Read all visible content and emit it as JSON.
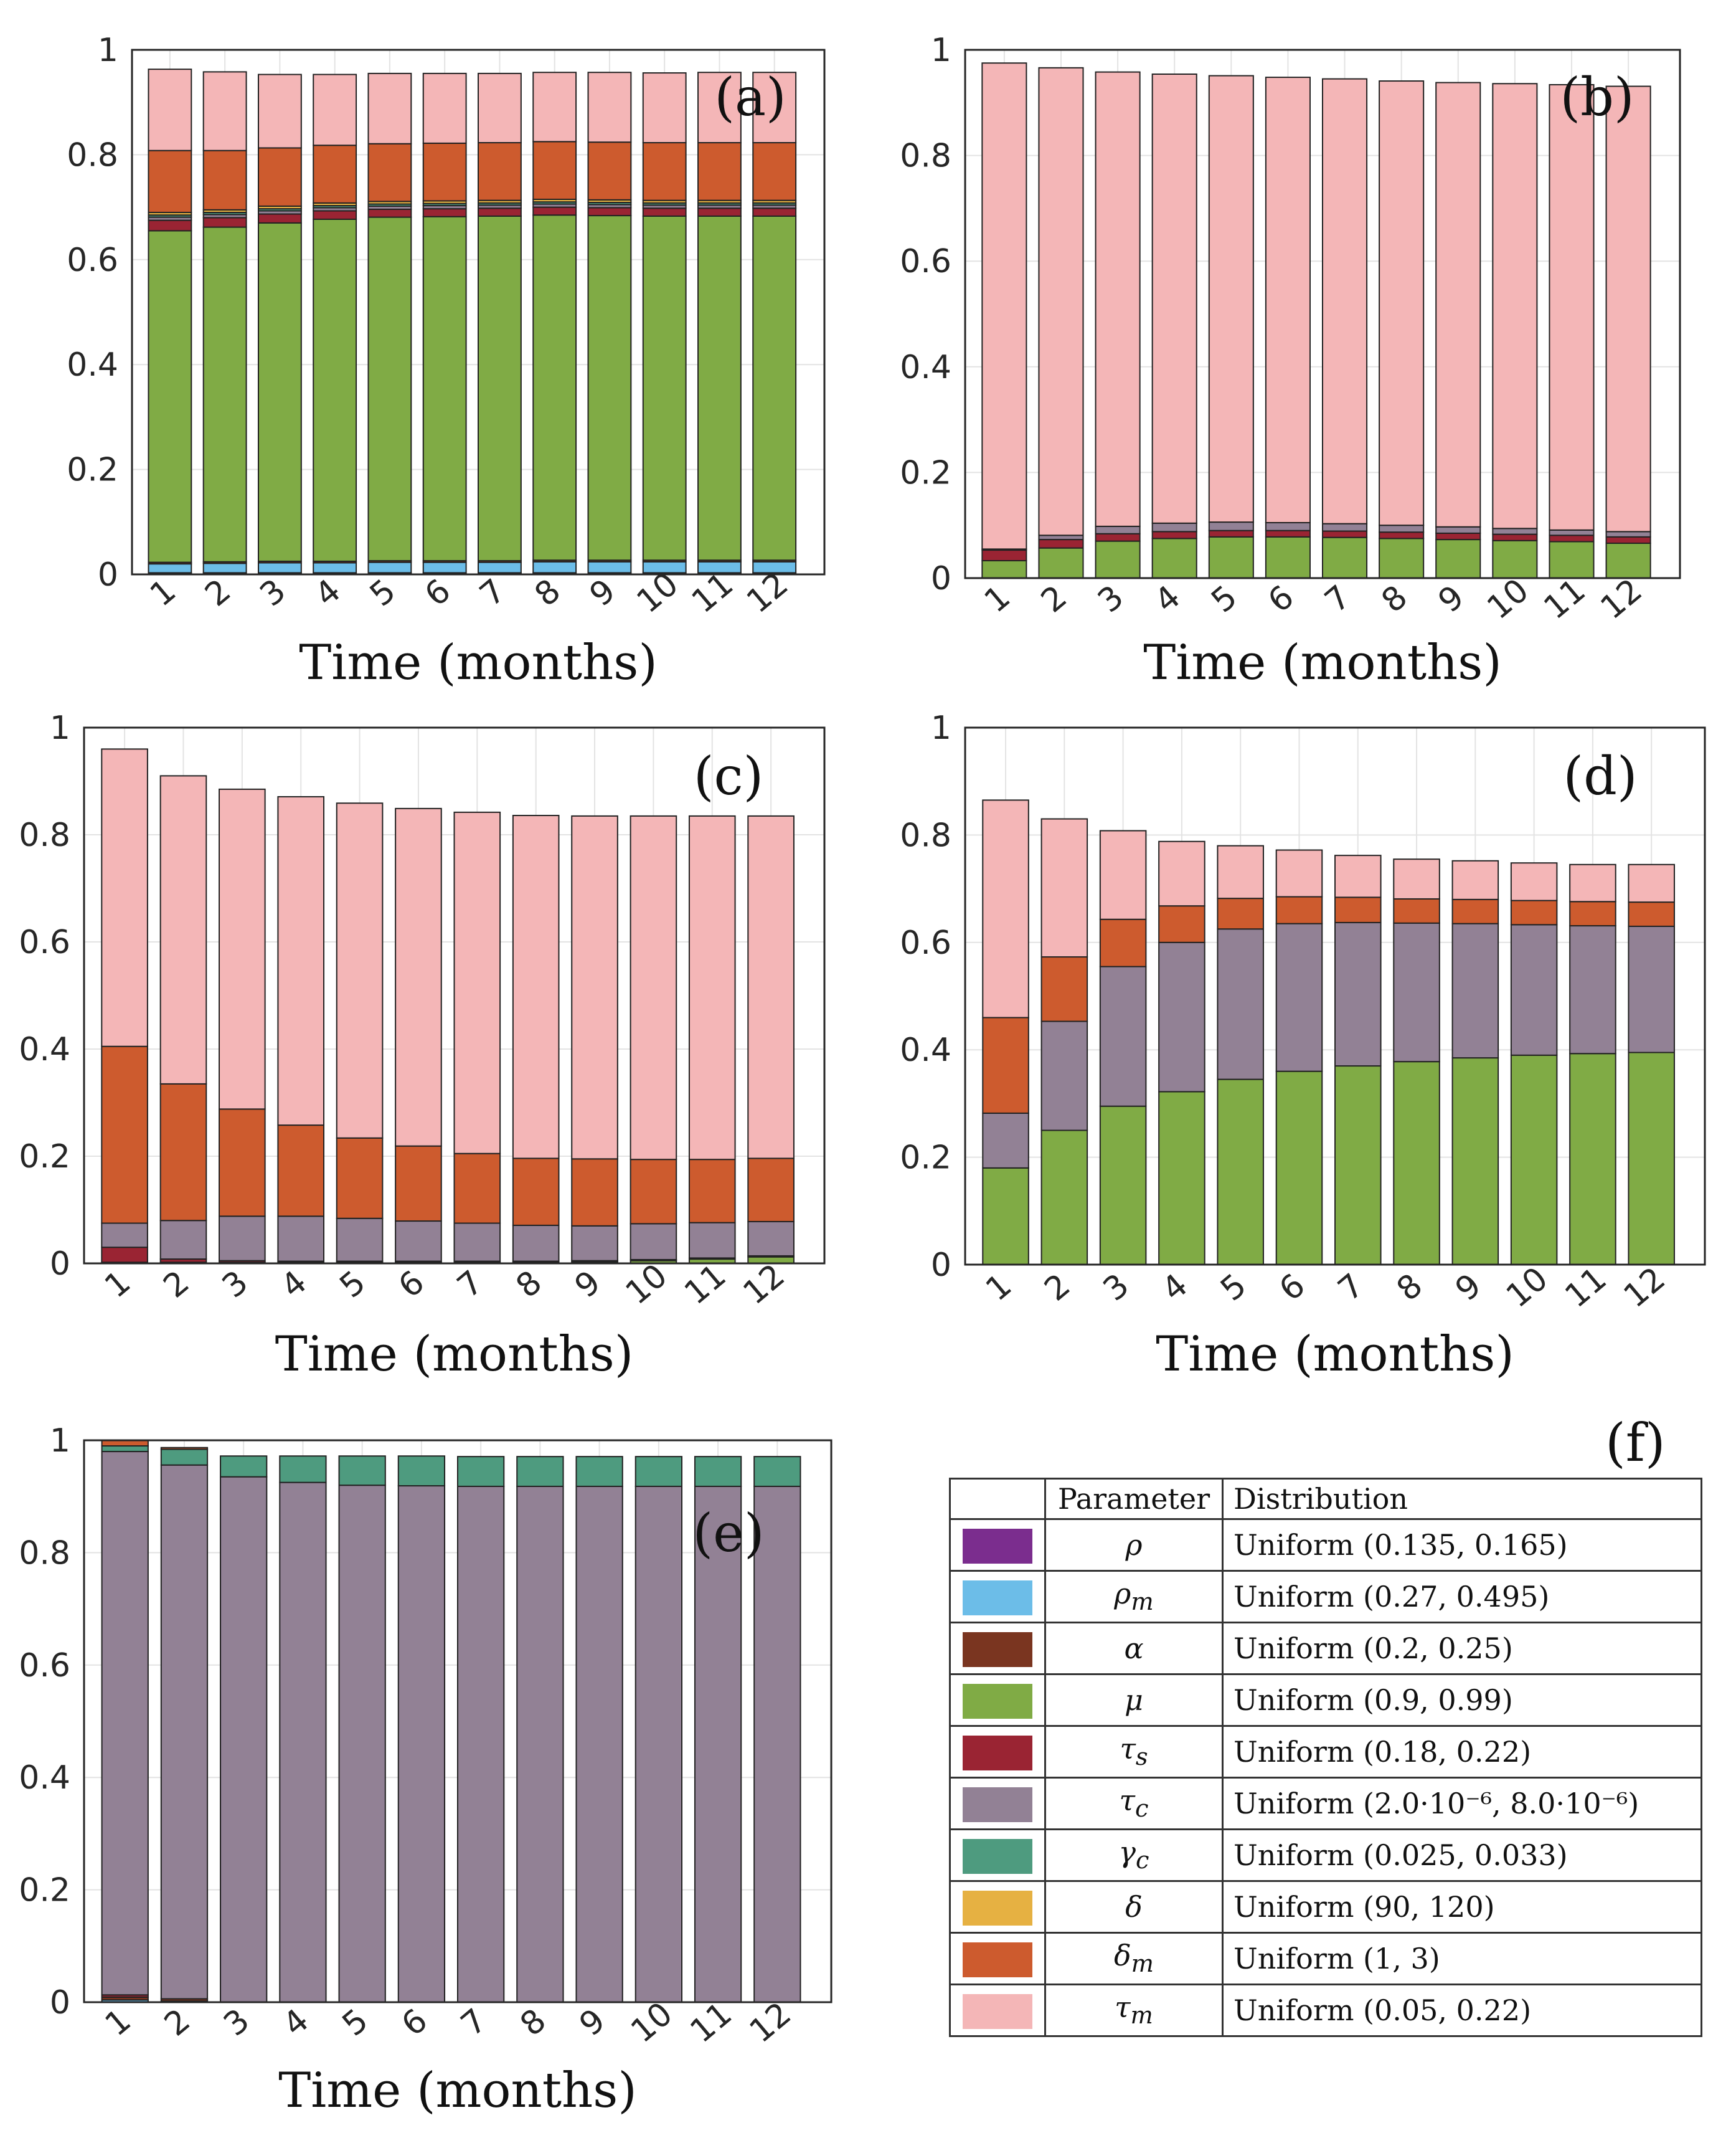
{
  "chart_data": [
    {
      "type": "bar",
      "stacked": true,
      "panel": "(a)",
      "xlabel": "Time (months)",
      "categories": [
        "1",
        "2",
        "3",
        "4",
        "5",
        "6",
        "7",
        "8",
        "9",
        "10",
        "11",
        "12"
      ],
      "ylim": [
        0,
        1
      ],
      "yticks": [
        "0",
        "0.2",
        "0.4",
        "0.6",
        "0.8",
        "1"
      ],
      "series": [
        {
          "name": "rho",
          "values": [
            0.003,
            0.003,
            0.003,
            0.003,
            0.003,
            0.003,
            0.003,
            0.003,
            0.003,
            0.003,
            0.003,
            0.003
          ]
        },
        {
          "name": "rho_m",
          "values": [
            0.017,
            0.018,
            0.019,
            0.019,
            0.02,
            0.02,
            0.02,
            0.021,
            0.021,
            0.021,
            0.021,
            0.021
          ]
        },
        {
          "name": "alpha",
          "values": [
            0.003,
            0.003,
            0.003,
            0.003,
            0.003,
            0.003,
            0.003,
            0.003,
            0.003,
            0.003,
            0.003,
            0.003
          ]
        },
        {
          "name": "mu",
          "values": [
            0.632,
            0.638,
            0.645,
            0.652,
            0.655,
            0.656,
            0.657,
            0.658,
            0.657,
            0.656,
            0.656,
            0.656
          ]
        },
        {
          "name": "tau_s",
          "values": [
            0.02,
            0.018,
            0.017,
            0.016,
            0.015,
            0.015,
            0.015,
            0.015,
            0.015,
            0.015,
            0.015,
            0.015
          ]
        },
        {
          "name": "tau_c",
          "values": [
            0.006,
            0.006,
            0.006,
            0.006,
            0.006,
            0.006,
            0.006,
            0.006,
            0.006,
            0.006,
            0.006,
            0.006
          ]
        },
        {
          "name": "gamma_c",
          "values": [
            0.004,
            0.004,
            0.004,
            0.004,
            0.004,
            0.004,
            0.004,
            0.004,
            0.004,
            0.004,
            0.004,
            0.004
          ]
        },
        {
          "name": "delta",
          "values": [
            0.005,
            0.005,
            0.005,
            0.005,
            0.005,
            0.005,
            0.005,
            0.005,
            0.005,
            0.005,
            0.005,
            0.005
          ]
        },
        {
          "name": "delta_m",
          "values": [
            0.118,
            0.113,
            0.111,
            0.11,
            0.11,
            0.11,
            0.11,
            0.11,
            0.11,
            0.11,
            0.11,
            0.11
          ]
        },
        {
          "name": "tau_m",
          "values": [
            0.155,
            0.15,
            0.14,
            0.135,
            0.134,
            0.133,
            0.132,
            0.132,
            0.133,
            0.133,
            0.134,
            0.134
          ]
        }
      ]
    },
    {
      "type": "bar",
      "stacked": true,
      "panel": "(b)",
      "xlabel": "Time (months)",
      "categories": [
        "1",
        "2",
        "3",
        "4",
        "5",
        "6",
        "7",
        "8",
        "9",
        "10",
        "11",
        "12"
      ],
      "ylim": [
        0,
        1
      ],
      "yticks": [
        "0",
        "0.2",
        "0.4",
        "0.6",
        "0.8",
        "1"
      ],
      "series": [
        {
          "name": "mu",
          "values": [
            0.033,
            0.057,
            0.07,
            0.075,
            0.078,
            0.078,
            0.077,
            0.075,
            0.073,
            0.071,
            0.069,
            0.066
          ]
        },
        {
          "name": "tau_s",
          "values": [
            0.02,
            0.016,
            0.014,
            0.013,
            0.012,
            0.012,
            0.012,
            0.012,
            0.012,
            0.012,
            0.012,
            0.012
          ]
        },
        {
          "name": "tau_c",
          "values": [
            0.002,
            0.008,
            0.014,
            0.016,
            0.016,
            0.015,
            0.014,
            0.013,
            0.012,
            0.011,
            0.01,
            0.01
          ]
        },
        {
          "name": "tau_m",
          "values": [
            0.92,
            0.885,
            0.86,
            0.85,
            0.845,
            0.843,
            0.842,
            0.841,
            0.841,
            0.842,
            0.843,
            0.843
          ]
        }
      ]
    },
    {
      "type": "bar",
      "stacked": true,
      "panel": "(c)",
      "xlabel": "Time (months)",
      "categories": [
        "1",
        "2",
        "3",
        "4",
        "5",
        "6",
        "7",
        "8",
        "9",
        "10",
        "11",
        "12"
      ],
      "ylim": [
        0,
        1
      ],
      "yticks": [
        "0",
        "0.2",
        "0.4",
        "0.6",
        "0.8",
        "1"
      ],
      "series": [
        {
          "name": "mu",
          "values": [
            0.002,
            0.002,
            0.002,
            0.002,
            0.002,
            0.002,
            0.002,
            0.002,
            0.003,
            0.005,
            0.008,
            0.012
          ]
        },
        {
          "name": "tau_s",
          "values": [
            0.028,
            0.006,
            0.003,
            0.002,
            0.002,
            0.002,
            0.002,
            0.002,
            0.002,
            0.002,
            0.002,
            0.002
          ]
        },
        {
          "name": "tau_c",
          "values": [
            0.045,
            0.072,
            0.083,
            0.084,
            0.08,
            0.075,
            0.071,
            0.067,
            0.065,
            0.067,
            0.066,
            0.064
          ]
        },
        {
          "name": "delta_m",
          "values": [
            0.33,
            0.255,
            0.2,
            0.17,
            0.15,
            0.14,
            0.13,
            0.125,
            0.125,
            0.12,
            0.118,
            0.118
          ]
        },
        {
          "name": "tau_m",
          "values": [
            0.555,
            0.575,
            0.597,
            0.613,
            0.625,
            0.63,
            0.637,
            0.64,
            0.64,
            0.641,
            0.641,
            0.639
          ]
        }
      ]
    },
    {
      "type": "bar",
      "stacked": true,
      "panel": "(d)",
      "xlabel": "Time (months)",
      "categories": [
        "1",
        "2",
        "3",
        "4",
        "5",
        "6",
        "7",
        "8",
        "9",
        "10",
        "11",
        "12"
      ],
      "ylim": [
        0,
        1
      ],
      "yticks": [
        "0",
        "0.2",
        "0.4",
        "0.6",
        "0.8",
        "1"
      ],
      "series": [
        {
          "name": "mu",
          "values": [
            0.18,
            0.25,
            0.295,
            0.322,
            0.345,
            0.36,
            0.37,
            0.378,
            0.385,
            0.39,
            0.393,
            0.395
          ]
        },
        {
          "name": "tau_c",
          "values": [
            0.102,
            0.203,
            0.26,
            0.278,
            0.28,
            0.275,
            0.267,
            0.258,
            0.25,
            0.243,
            0.238,
            0.235
          ]
        },
        {
          "name": "delta_m",
          "values": [
            0.178,
            0.12,
            0.088,
            0.068,
            0.057,
            0.05,
            0.047,
            0.045,
            0.045,
            0.045,
            0.045,
            0.045
          ]
        },
        {
          "name": "tau_m",
          "values": [
            0.405,
            0.257,
            0.165,
            0.12,
            0.098,
            0.087,
            0.078,
            0.074,
            0.072,
            0.07,
            0.069,
            0.07
          ]
        }
      ]
    },
    {
      "type": "bar",
      "stacked": true,
      "panel": "(e)",
      "xlabel": "Time (months)",
      "categories": [
        "1",
        "2",
        "3",
        "4",
        "5",
        "6",
        "7",
        "8",
        "9",
        "10",
        "11",
        "12"
      ],
      "ylim": [
        0,
        1
      ],
      "yticks": [
        "0",
        "0.2",
        "0.4",
        "0.6",
        "0.8",
        "1"
      ],
      "series": [
        {
          "name": "rho_m",
          "values": [
            0.004,
            0.002,
            0,
            0,
            0,
            0,
            0,
            0,
            0,
            0,
            0,
            0
          ]
        },
        {
          "name": "alpha",
          "values": [
            0.005,
            0.004,
            0,
            0,
            0,
            0,
            0,
            0,
            0,
            0,
            0,
            0
          ]
        },
        {
          "name": "tau_s",
          "values": [
            0.004,
            0,
            0,
            0,
            0,
            0,
            0,
            0,
            0,
            0,
            0,
            0
          ]
        },
        {
          "name": "tau_c",
          "values": [
            0.967,
            0.95,
            0.935,
            0.925,
            0.92,
            0.919,
            0.918,
            0.918,
            0.918,
            0.918,
            0.918,
            0.918
          ]
        },
        {
          "name": "gamma_c",
          "values": [
            0.01,
            0.028,
            0.037,
            0.047,
            0.052,
            0.053,
            0.053,
            0.053,
            0.053,
            0.053,
            0.053,
            0.053
          ]
        },
        {
          "name": "delta_m",
          "values": [
            0.01,
            0.003,
            0,
            0,
            0,
            0,
            0,
            0,
            0,
            0,
            0,
            0
          ]
        }
      ]
    }
  ],
  "colors": {
    "rho": "#7b2d8e",
    "rho_m": "#6cbde8",
    "alpha": "#7a3520",
    "mu": "#80ab45",
    "tau_s": "#9a2433",
    "tau_c": "#928195",
    "gamma_c": "#4e9b7f",
    "delta": "#e6b142",
    "delta_m": "#cd5b2e",
    "tau_m": "#f4b6b7"
  },
  "legend_panel": "(f)",
  "legend_table": {
    "header": {
      "parameter": "Parameter",
      "distribution": "Distribution"
    },
    "rows": [
      {
        "key": "rho",
        "symbol": "ρ",
        "distribution": "Uniform (0.135, 0.165)"
      },
      {
        "key": "rho_m",
        "symbol": "ρm",
        "distribution": "Uniform (0.27, 0.495)"
      },
      {
        "key": "alpha",
        "symbol": "α",
        "distribution": "Uniform (0.2, 0.25)"
      },
      {
        "key": "mu",
        "symbol": "μ",
        "distribution": "Uniform (0.9, 0.99)"
      },
      {
        "key": "tau_s",
        "symbol": "τs",
        "distribution": "Uniform (0.18, 0.22)"
      },
      {
        "key": "tau_c",
        "symbol": "τc",
        "distribution": "Uniform (2.0·10⁻⁶, 8.0·10⁻⁶)"
      },
      {
        "key": "gamma_c",
        "symbol": "γc",
        "distribution": "Uniform (0.025, 0.033)"
      },
      {
        "key": "delta",
        "symbol": "δ",
        "distribution": "Uniform (90, 120)"
      },
      {
        "key": "delta_m",
        "symbol": "δm",
        "distribution": "Uniform (1, 3)"
      },
      {
        "key": "tau_m",
        "symbol": "τm",
        "distribution": "Uniform (0.05, 0.22)"
      }
    ]
  }
}
